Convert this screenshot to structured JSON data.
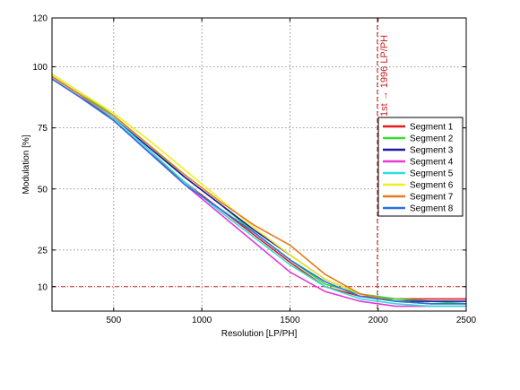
{
  "chart_data": {
    "type": "line",
    "title": "",
    "xlabel": "Resolution [LP/PH]",
    "ylabel": "Modulation [%]",
    "xlim": [
      150,
      2500
    ],
    "ylim": [
      0,
      120
    ],
    "xticks": [
      500,
      1000,
      1500,
      2000,
      2500
    ],
    "yticks": [
      10,
      25,
      50,
      75,
      100,
      120
    ],
    "grid": true,
    "legend_position": "right",
    "reference_hline": {
      "y": 10,
      "color": "#cc2222"
    },
    "reference_vline": {
      "x": 1996,
      "color": "#cc2222",
      "label": "1st → 1996 LP/PH"
    },
    "series": [
      {
        "name": "Segment 1",
        "color": "#e41a1c",
        "x": [
          150,
          300,
          500,
          700,
          900,
          1100,
          1300,
          1500,
          1700,
          1900,
          2100,
          2300,
          2500
        ],
        "y": [
          96,
          89,
          78,
          65,
          53,
          42,
          31,
          20,
          10,
          6,
          5,
          5,
          5
        ]
      },
      {
        "name": "Segment 2",
        "color": "#33dd33",
        "x": [
          150,
          300,
          500,
          700,
          900,
          1100,
          1300,
          1500,
          1700,
          1900,
          2100,
          2300,
          2500
        ],
        "y": [
          97,
          90,
          80,
          68,
          55,
          44,
          32,
          21,
          11,
          7,
          5,
          4,
          3
        ]
      },
      {
        "name": "Segment 3",
        "color": "#1a1aa6",
        "x": [
          150,
          300,
          500,
          700,
          900,
          1100,
          1300,
          1500,
          1700,
          1900,
          2100,
          2300,
          2500
        ],
        "y": [
          96,
          89,
          79,
          67,
          55,
          44,
          33,
          23,
          13,
          7,
          4,
          4,
          4
        ]
      },
      {
        "name": "Segment 4",
        "color": "#e53ad3",
        "x": [
          150,
          300,
          500,
          700,
          900,
          1100,
          1300,
          1500,
          1700,
          1900,
          2100,
          2300,
          2500
        ],
        "y": [
          95,
          88,
          78,
          65,
          52,
          40,
          28,
          16,
          8,
          4,
          2,
          2,
          2
        ]
      },
      {
        "name": "Segment 5",
        "color": "#33dddd",
        "x": [
          150,
          300,
          500,
          700,
          900,
          1100,
          1300,
          1500,
          1700,
          1900,
          2100,
          2300,
          2500
        ],
        "y": [
          96,
          89,
          79,
          66,
          53,
          41,
          30,
          19,
          10,
          5,
          3,
          2,
          2
        ]
      },
      {
        "name": "Segment 6",
        "color": "#eeee22",
        "x": [
          150,
          300,
          500,
          700,
          900,
          1100,
          1300,
          1500,
          1700,
          1900,
          2100,
          2300,
          2500
        ],
        "y": [
          97,
          90,
          81,
          70,
          58,
          46,
          34,
          23,
          13,
          7,
          4,
          3,
          3
        ]
      },
      {
        "name": "Segment 7",
        "color": "#e87a1e",
        "x": [
          150,
          300,
          500,
          700,
          900,
          1100,
          1300,
          1500,
          1700,
          1900,
          2100,
          2300,
          2500
        ],
        "y": [
          96,
          89,
          80,
          68,
          56,
          45,
          35,
          27,
          15,
          7,
          4,
          3,
          3
        ]
      },
      {
        "name": "Segment 8",
        "color": "#2a73e0",
        "x": [
          150,
          300,
          500,
          700,
          900,
          1100,
          1300,
          1500,
          1700,
          1900,
          2100,
          2300,
          2500
        ],
        "y": [
          95,
          88,
          78,
          65,
          52,
          42,
          32,
          21,
          12,
          6,
          4,
          3,
          3
        ]
      }
    ]
  }
}
